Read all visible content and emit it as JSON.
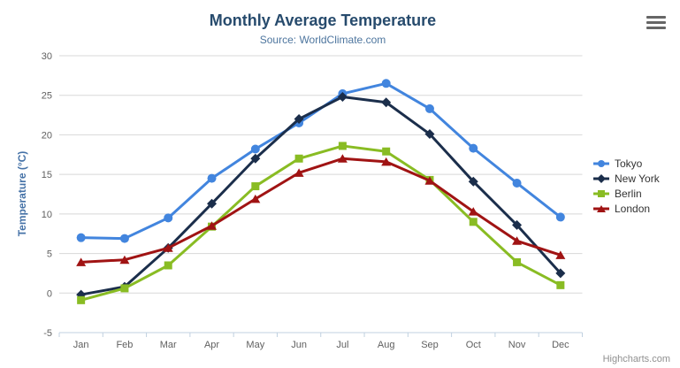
{
  "header": {
    "title": "Monthly Average Temperature",
    "subtitle": "Source: WorldClimate.com"
  },
  "credits": "Highcharts.com",
  "colors": {
    "title": "#274b6d",
    "subtitle": "#4d759e",
    "axis_title": "#4572a7",
    "axis_labels": "#606060",
    "gridline": "#d8d8d8",
    "axis_line": "#c0d0e0",
    "legend_text": "#333333",
    "hamburger": "#666666"
  },
  "icons": {
    "context_menu": "hamburger-icon"
  },
  "chart_data": {
    "type": "line",
    "title": "Monthly Average Temperature",
    "subtitle": "Source: WorldClimate.com",
    "xlabel": "",
    "ylabel": "Temperature (°C)",
    "categories": [
      "Jan",
      "Feb",
      "Mar",
      "Apr",
      "May",
      "Jun",
      "Jul",
      "Aug",
      "Sep",
      "Oct",
      "Nov",
      "Dec"
    ],
    "ylim": [
      -5,
      30
    ],
    "yticks": [
      -5,
      0,
      5,
      10,
      15,
      20,
      25,
      30
    ],
    "grid": true,
    "legend_position": "right",
    "series": [
      {
        "name": "Tokyo",
        "color": "#4285de",
        "marker": "circle",
        "values": [
          7.0,
          6.9,
          9.5,
          14.5,
          18.2,
          21.5,
          25.2,
          26.5,
          23.3,
          18.3,
          13.9,
          9.6
        ]
      },
      {
        "name": "New York",
        "color": "#1b2e4b",
        "marker": "diamond",
        "values": [
          -0.2,
          0.8,
          5.7,
          11.3,
          17.0,
          22.0,
          24.8,
          24.1,
          20.1,
          14.1,
          8.6,
          2.5
        ]
      },
      {
        "name": "Berlin",
        "color": "#89bc23",
        "marker": "square",
        "values": [
          -0.9,
          0.6,
          3.5,
          8.4,
          13.5,
          17.0,
          18.6,
          17.9,
          14.3,
          9.0,
          3.9,
          1.0
        ]
      },
      {
        "name": "London",
        "color": "#a01313",
        "marker": "triangle",
        "values": [
          3.9,
          4.2,
          5.7,
          8.5,
          11.9,
          15.2,
          17.0,
          16.6,
          14.2,
          10.3,
          6.6,
          4.8
        ]
      }
    ]
  }
}
